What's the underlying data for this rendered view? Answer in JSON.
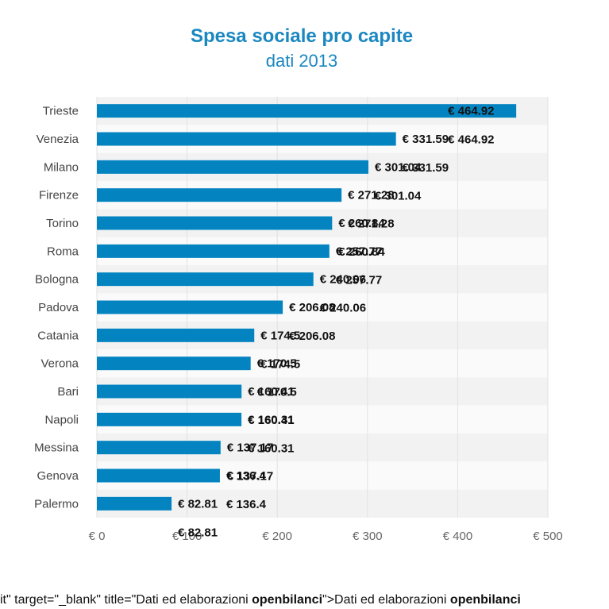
{
  "chart_data": {
    "type": "bar",
    "orientation": "horizontal",
    "title": "Spesa sociale pro capite",
    "subtitle": "dati 2013",
    "categories": [
      "Trieste",
      "Venezia",
      "Milano",
      "Firenze",
      "Torino",
      "Roma",
      "Bologna",
      "Padova",
      "Catania",
      "Verona",
      "Bari",
      "Napoli",
      "Messina",
      "Genova",
      "Palermo"
    ],
    "values": [
      464.92,
      331.59,
      301.04,
      271.28,
      260.84,
      257.77,
      240.06,
      206.08,
      174.5,
      170.5,
      160.41,
      160.31,
      137.17,
      136.4,
      82.81
    ],
    "value_labels": [
      "€ 464.92",
      "€ 331.59",
      "€ 301.04",
      "€ 271.28",
      "€ 260.84",
      "€ 257.77",
      "€ 240.06",
      "€ 206.08",
      "€ 174.5",
      "€ 170.5",
      "€ 160.41",
      "€ 160.31",
      "€ 137.17",
      "€ 136.4",
      "€ 82.81"
    ],
    "xlim": [
      0,
      500
    ],
    "ticks": [
      0,
      100,
      200,
      300,
      400,
      500
    ],
    "tick_labels": [
      "€ 0",
      "€ 100",
      "€ 200",
      "€ 300",
      "€ 400",
      "€ 500"
    ],
    "grid": true,
    "legend": "none",
    "colors": {
      "bar": "#0384c1",
      "title": "#1a87c0",
      "band_dark": "#f2f2f2",
      "band_light": "#fafafa"
    }
  },
  "credits": {
    "prefix": "it\" target=\"_blank\" title=\"Dati ed elaborazioni ",
    "brand1": "openbilanci",
    "middle": "\">Dati ed elaborazioni ",
    "brand2": "openbilanci"
  }
}
